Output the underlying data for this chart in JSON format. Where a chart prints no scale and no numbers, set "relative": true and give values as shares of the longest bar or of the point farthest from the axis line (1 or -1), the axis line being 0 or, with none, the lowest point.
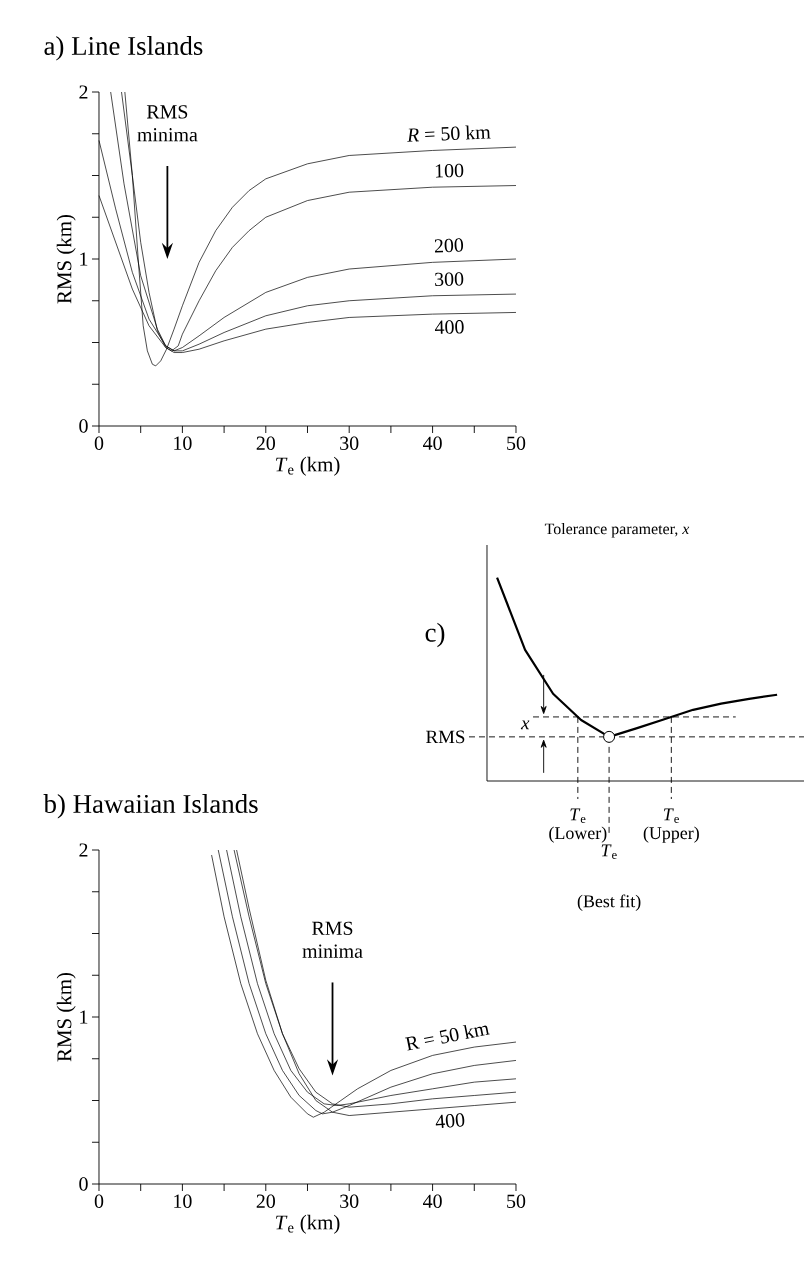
{
  "chart_data": [
    {
      "type": "line",
      "title": "a) Line Islands",
      "xlabel": "*T*$_{e}$ (km)",
      "ylabel": "RMS (km)",
      "annotations": [
        "RMS minima"
      ],
      "xlim": [
        0,
        50
      ],
      "ylim": [
        0,
        2
      ],
      "xticks": [
        0,
        {
          "value": 5,
          "label": null
        },
        10,
        {
          "value": 15,
          "label": null
        },
        20,
        {
          "value": 25,
          "label": null
        },
        30,
        {
          "value": 35,
          "label": null
        },
        40,
        {
          "value": 45,
          "label": null
        },
        50
      ],
      "yticks": [
        0,
        {
          "value": 0.25,
          "label": null
        },
        {
          "value": 0.5,
          "label": null
        },
        {
          "value": 0.75,
          "label": null
        },
        1,
        {
          "value": 1.25,
          "label": null
        },
        {
          "value": 1.5,
          "label": null
        },
        {
          "value": 1.75,
          "label": null
        },
        2
      ],
      "series": [
        {
          "name": "*R* = 50 km",
          "color": "#000000",
          "x": [
            3.1,
            4,
            4.7,
            5.3,
            5.8,
            6.4,
            6.8,
            7.4,
            8.1,
            9,
            10,
            12,
            14,
            16,
            18,
            20,
            25,
            30,
            40,
            50
          ],
          "values": [
            2.0,
            1.5,
            1.0,
            0.6,
            0.45,
            0.37,
            0.36,
            0.39,
            0.46,
            0.58,
            0.72,
            0.98,
            1.17,
            1.31,
            1.41,
            1.48,
            1.57,
            1.62,
            1.65,
            1.67
          ]
        },
        {
          "name": "100",
          "color": "#000000",
          "x": [
            2.7,
            4,
            5,
            6,
            7,
            8,
            8.7,
            9.5,
            10,
            12,
            14,
            16,
            18,
            20,
            25,
            30,
            40,
            50
          ],
          "values": [
            2.0,
            1.5,
            1.1,
            0.8,
            0.57,
            0.47,
            0.45,
            0.48,
            0.55,
            0.75,
            0.93,
            1.07,
            1.17,
            1.25,
            1.35,
            1.4,
            1.43,
            1.44
          ]
        },
        {
          "name": "200",
          "color": "#000000",
          "x": [
            1.4,
            3,
            5,
            7,
            8,
            9,
            10,
            12,
            15,
            20,
            25,
            30,
            40,
            50
          ],
          "values": [
            2.0,
            1.45,
            0.9,
            0.58,
            0.48,
            0.45,
            0.47,
            0.54,
            0.65,
            0.8,
            0.89,
            0.94,
            0.98,
            1.0
          ]
        },
        {
          "name": "300",
          "color": "#000000",
          "x": [
            0,
            2,
            4,
            6,
            8,
            9,
            10,
            12,
            15,
            20,
            25,
            30,
            40,
            50
          ],
          "values": [
            1.71,
            1.3,
            0.92,
            0.64,
            0.48,
            0.45,
            0.45,
            0.49,
            0.56,
            0.66,
            0.72,
            0.75,
            0.78,
            0.79
          ]
        },
        {
          "name": "400",
          "color": "#000000",
          "x": [
            0,
            2,
            4,
            6,
            8,
            9,
            10,
            12,
            15,
            20,
            25,
            30,
            40,
            50
          ],
          "values": [
            1.38,
            1.1,
            0.82,
            0.6,
            0.47,
            0.44,
            0.44,
            0.46,
            0.51,
            0.58,
            0.62,
            0.65,
            0.67,
            0.68
          ]
        }
      ]
    },
    {
      "type": "line",
      "title": "c)",
      "subtitle": "Tolerance parameter, *x*",
      "relative": true,
      "categories": [
        null,
        null,
        null,
        null,
        null,
        null,
        null,
        null,
        null,
        null,
        null
      ],
      "series": [
        {
          "color": "#000000",
          "values": [
            1.0,
            0.645,
            0.429,
            0.3,
            0.217,
            0.26,
            0.305,
            0.35,
            0.38,
            0.404,
            0.424
          ]
        }
      ],
      "ref_lines": [
        {
          "axis": "y",
          "value": 0.217,
          "label": "RMS",
          "line_style": "dashed"
        },
        {
          "axis": "y",
          "value": 0.315,
          "label": "*x*",
          "line_style": "dashed"
        }
      ],
      "annotations": [
        "*T*$_{e}$",
        "(Lower)",
        "*T*$_{e}$",
        "(Best fit)",
        "*T*$_{e}$",
        "(Upper)"
      ]
    },
    {
      "type": "line",
      "title": "b) Hawaiian Islands",
      "xlabel": "*T*$_{e}$ (km)",
      "ylabel": "RMS (km)",
      "annotations": [
        "RMS minima"
      ],
      "xlim": [
        0,
        50
      ],
      "ylim": [
        0,
        2
      ],
      "xticks": [
        0,
        {
          "value": 5,
          "label": null
        },
        10,
        {
          "value": 15,
          "label": null
        },
        20,
        {
          "value": 25,
          "label": null
        },
        30,
        {
          "value": 35,
          "label": null
        },
        40,
        {
          "value": 45,
          "label": null
        },
        50
      ],
      "yticks": [
        0,
        {
          "value": 0.25,
          "label": null
        },
        {
          "value": 0.5,
          "label": null
        },
        {
          "value": 0.75,
          "label": null
        },
        1,
        {
          "value": 1.25,
          "label": null
        },
        {
          "value": 1.5,
          "label": null
        },
        {
          "value": 1.75,
          "label": null
        },
        2
      ],
      "series": [
        {
          "name": "R = 50 km",
          "color": "#000000",
          "x": [
            13.5,
            15,
            17,
            19,
            21,
            23,
            25,
            25.7,
            27,
            29,
            31,
            35,
            40,
            45,
            50
          ],
          "values": [
            1.97,
            1.6,
            1.2,
            0.9,
            0.68,
            0.52,
            0.42,
            0.4,
            0.43,
            0.5,
            0.57,
            0.68,
            0.77,
            0.82,
            0.85
          ]
        },
        {
          "color": "#000000",
          "x": [
            14.3,
            16,
            18,
            20,
            22,
            24,
            26,
            26.8,
            28,
            30,
            35,
            40,
            45,
            50
          ],
          "values": [
            2.0,
            1.6,
            1.2,
            0.9,
            0.68,
            0.53,
            0.44,
            0.42,
            0.43,
            0.47,
            0.58,
            0.66,
            0.71,
            0.74
          ]
        },
        {
          "color": "#000000",
          "x": [
            15.3,
            17,
            19,
            21,
            23,
            25,
            27,
            28.5,
            30,
            35,
            40,
            45,
            50
          ],
          "values": [
            2.0,
            1.6,
            1.2,
            0.9,
            0.68,
            0.55,
            0.48,
            0.47,
            0.48,
            0.53,
            0.57,
            0.61,
            0.63
          ]
        },
        {
          "color": "#000000",
          "x": [
            16.2,
            18,
            20,
            22,
            24,
            26,
            28,
            30,
            35,
            40,
            45,
            50
          ],
          "values": [
            2.0,
            1.6,
            1.2,
            0.9,
            0.69,
            0.55,
            0.48,
            0.46,
            0.48,
            0.51,
            0.53,
            0.55
          ]
        },
        {
          "name": "400",
          "color": "#000000",
          "x": [
            16.5,
            18,
            20,
            22,
            24,
            26,
            28,
            30,
            35,
            40,
            45,
            50
          ],
          "values": [
            2.0,
            1.65,
            1.22,
            0.9,
            0.66,
            0.5,
            0.43,
            0.41,
            0.43,
            0.45,
            0.47,
            0.49
          ]
        }
      ]
    }
  ]
}
